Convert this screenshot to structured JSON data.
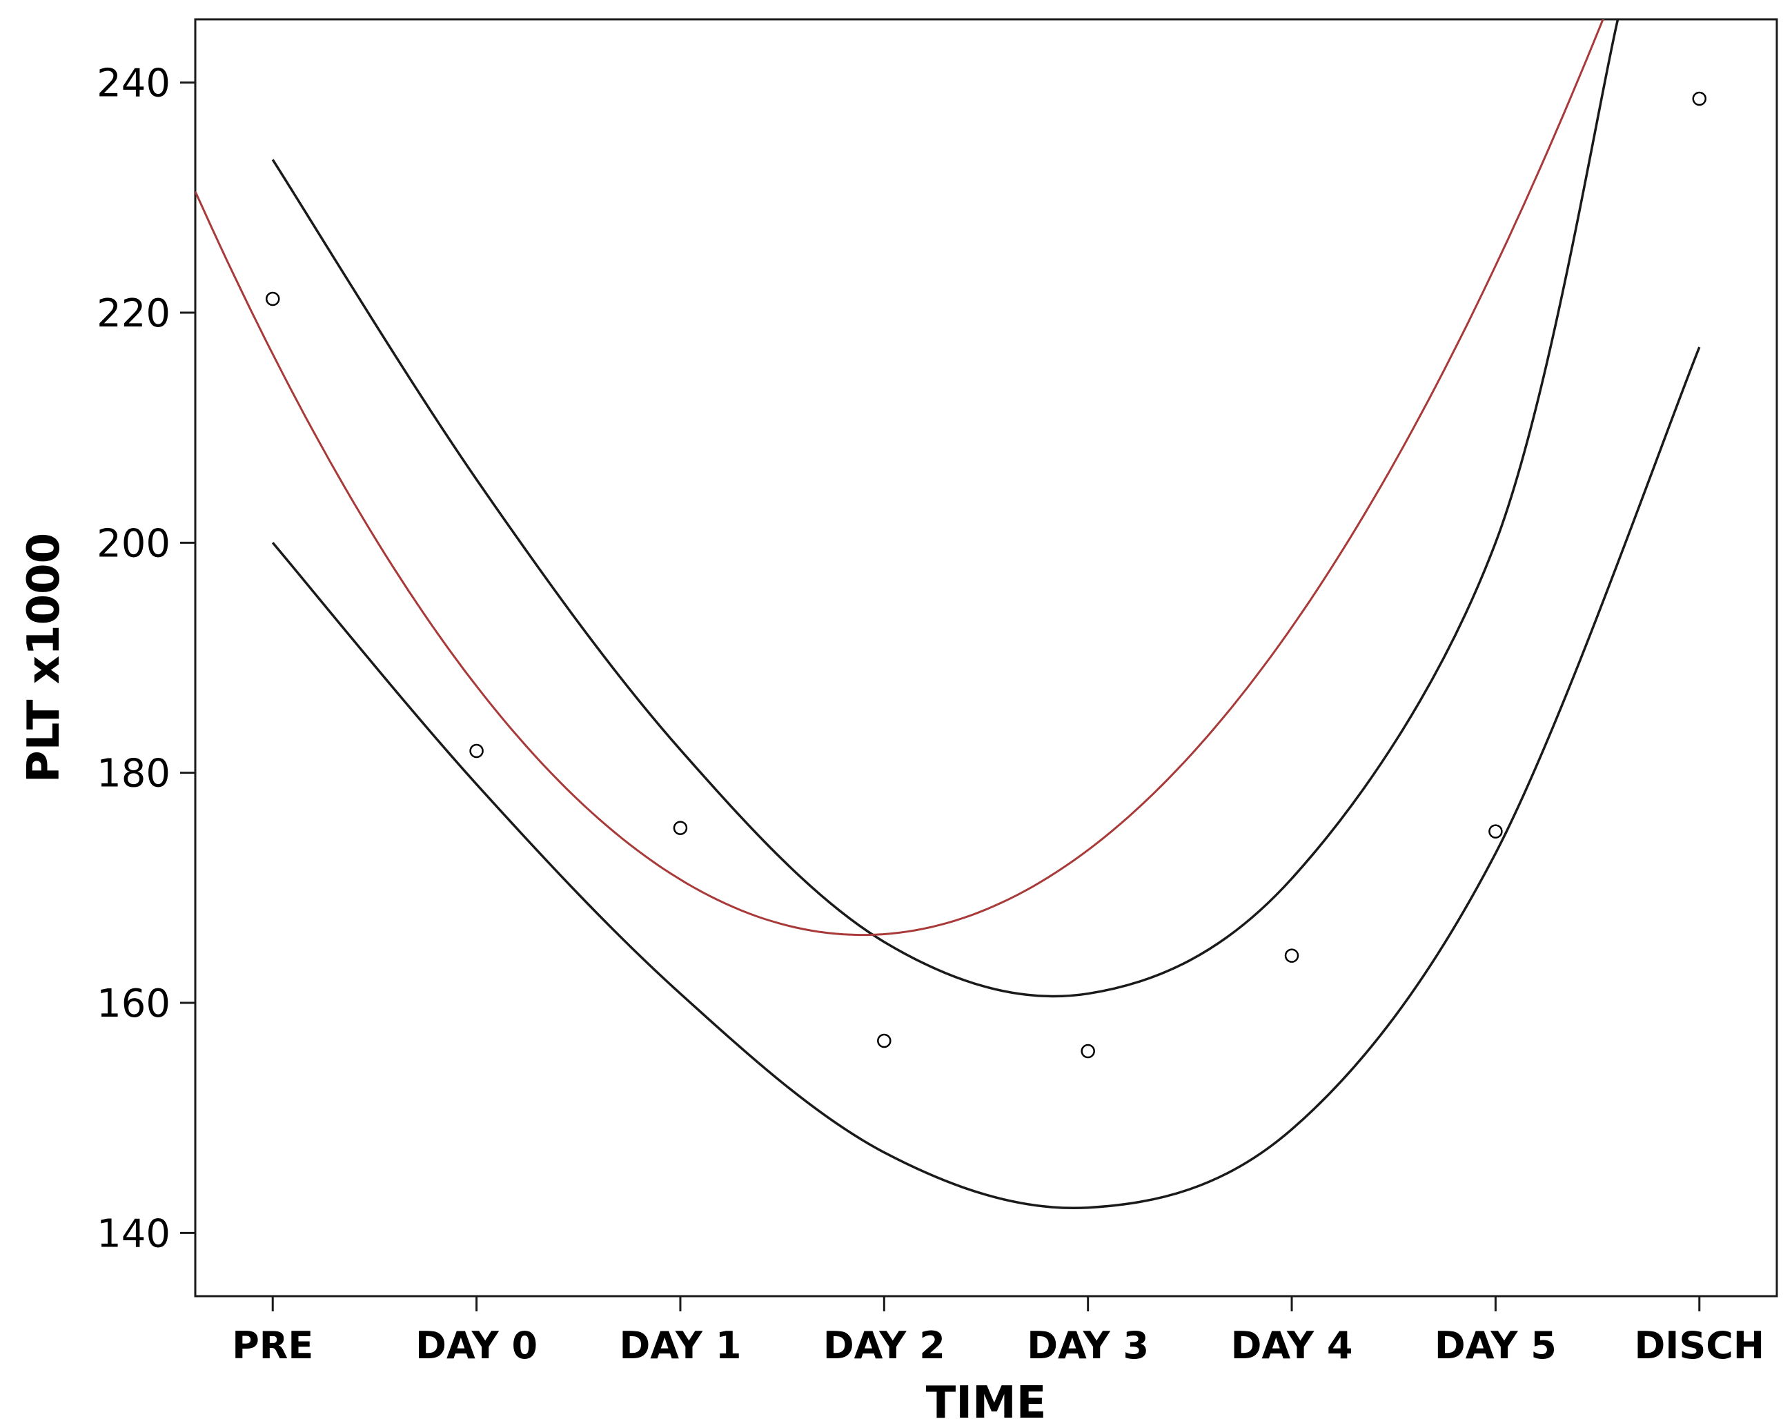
{
  "chart_data": {
    "type": "scatter",
    "xlabel": "TIME",
    "ylabel": "PLT x1000",
    "categories": [
      "PRE",
      "DAY 0",
      "DAY 1",
      "DAY 2",
      "DAY 3",
      "DAY 4",
      "DAY 5",
      "DISCH"
    ],
    "ylim": [
      134.5,
      245.5
    ],
    "xlim": [
      -0.38,
      7.38
    ],
    "yticks": [
      140,
      160,
      180,
      200,
      220,
      240
    ],
    "ytick_labels": [
      "140",
      "160",
      "180",
      "200",
      "220",
      "240"
    ],
    "grid": false,
    "legend": "none",
    "points": {
      "x": [
        0,
        1,
        2,
        3,
        4,
        5,
        6,
        7
      ],
      "y": [
        221.2,
        181.9,
        175.2,
        156.7,
        155.8,
        164.1,
        174.9,
        238.6
      ]
    },
    "fit": {
      "model": "quadratic",
      "coefficients": [
        216.4,
        -34.9,
        6.03
      ],
      "x_range": [
        -0.38,
        7.38
      ]
    },
    "upper_band": {
      "x": [
        0,
        1,
        2,
        3,
        4,
        5,
        6,
        6.6
      ],
      "y": [
        233.3,
        205.5,
        182.0,
        165.3,
        160.8,
        170.8,
        200.0,
        245.5
      ]
    },
    "lower_band": {
      "x": [
        0,
        1,
        2,
        3,
        4,
        5,
        6,
        7
      ],
      "y": [
        200.0,
        179.0,
        160.8,
        147.0,
        142.2,
        149.0,
        173.0,
        217.0
      ]
    },
    "colors": {
      "fit_line": "#a83a3a",
      "band_line": "#1a1a1a",
      "points": "#000000"
    }
  }
}
